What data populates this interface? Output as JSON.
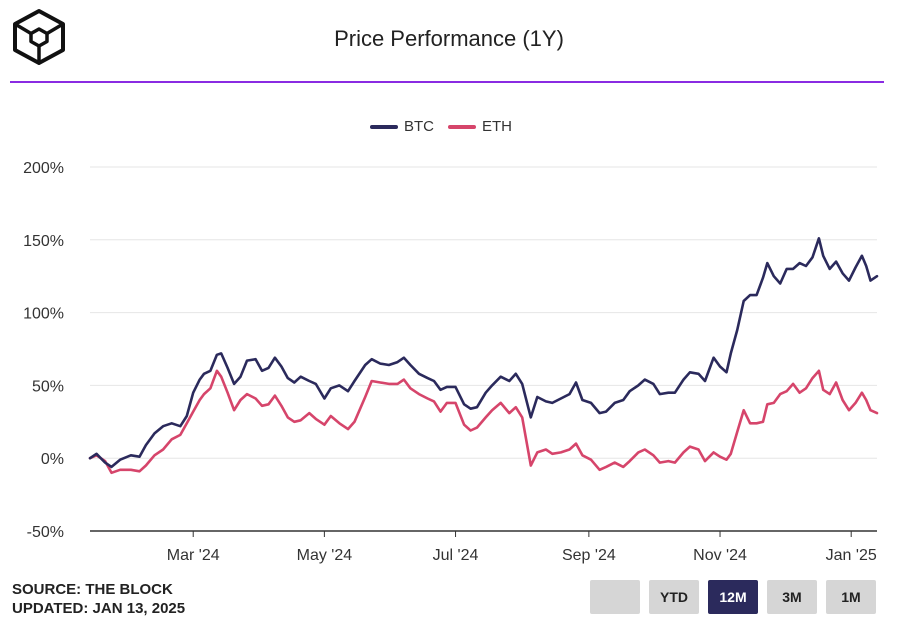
{
  "header": {
    "title": "Price Performance (1Y)"
  },
  "footer": {
    "source": "SOURCE: THE BLOCK",
    "updated": "UPDATED: JAN 13, 2025"
  },
  "range_buttons": [
    {
      "label": "",
      "active": false
    },
    {
      "label": "YTD",
      "active": false
    },
    {
      "label": "12M",
      "active": true
    },
    {
      "label": "3M",
      "active": false
    },
    {
      "label": "1M",
      "active": false
    }
  ],
  "colors": {
    "btc": "#2b2a5c",
    "eth": "#d6456b",
    "accent": "#8a2be2",
    "grid": "#e6e6e6"
  },
  "chart_data": {
    "type": "line",
    "title": "Price Performance (1Y)",
    "xlabel": "",
    "ylabel": "",
    "x_tick_labels": [
      "Mar '24",
      "May '24",
      "Jul '24",
      "Sep '24",
      "Nov '24",
      "Jan '25"
    ],
    "x_tick_dates": [
      "2024-03-01",
      "2024-05-01",
      "2024-07-01",
      "2024-09-01",
      "2024-11-01",
      "2025-01-01"
    ],
    "xlim": [
      "2024-01-13",
      "2025-01-13"
    ],
    "y_ticks": [
      -50,
      0,
      50,
      100,
      150,
      200
    ],
    "y_tick_labels": [
      "-50%",
      "0%",
      "50%",
      "100%",
      "150%",
      "200%"
    ],
    "ylim": [
      -50,
      200
    ],
    "grid": true,
    "legend_position": "top-center",
    "series": [
      {
        "name": "BTC",
        "color": "#2b2a5c",
        "points": [
          [
            "2024-01-13",
            0
          ],
          [
            "2024-01-16",
            3
          ],
          [
            "2024-01-20",
            -3
          ],
          [
            "2024-01-23",
            -6
          ],
          [
            "2024-01-27",
            -1
          ],
          [
            "2024-02-01",
            2
          ],
          [
            "2024-02-05",
            1
          ],
          [
            "2024-02-08",
            9
          ],
          [
            "2024-02-12",
            17
          ],
          [
            "2024-02-16",
            22
          ],
          [
            "2024-02-20",
            24
          ],
          [
            "2024-02-24",
            22
          ],
          [
            "2024-02-27",
            29
          ],
          [
            "2024-03-01",
            45
          ],
          [
            "2024-03-04",
            54
          ],
          [
            "2024-03-06",
            58
          ],
          [
            "2024-03-09",
            60
          ],
          [
            "2024-03-12",
            71
          ],
          [
            "2024-03-14",
            72
          ],
          [
            "2024-03-17",
            62
          ],
          [
            "2024-03-20",
            51
          ],
          [
            "2024-03-23",
            56
          ],
          [
            "2024-03-26",
            67
          ],
          [
            "2024-03-30",
            68
          ],
          [
            "2024-04-02",
            60
          ],
          [
            "2024-04-05",
            62
          ],
          [
            "2024-04-08",
            69
          ],
          [
            "2024-04-11",
            63
          ],
          [
            "2024-04-14",
            55
          ],
          [
            "2024-04-17",
            52
          ],
          [
            "2024-04-20",
            56
          ],
          [
            "2024-04-24",
            53
          ],
          [
            "2024-04-27",
            51
          ],
          [
            "2024-05-01",
            41
          ],
          [
            "2024-05-04",
            48
          ],
          [
            "2024-05-08",
            50
          ],
          [
            "2024-05-12",
            46
          ],
          [
            "2024-05-15",
            53
          ],
          [
            "2024-05-20",
            64
          ],
          [
            "2024-05-23",
            68
          ],
          [
            "2024-05-27",
            65
          ],
          [
            "2024-05-31",
            64
          ],
          [
            "2024-06-04",
            66
          ],
          [
            "2024-06-07",
            69
          ],
          [
            "2024-06-10",
            64
          ],
          [
            "2024-06-14",
            58
          ],
          [
            "2024-06-18",
            55
          ],
          [
            "2024-06-21",
            53
          ],
          [
            "2024-06-24",
            47
          ],
          [
            "2024-06-27",
            49
          ],
          [
            "2024-07-01",
            49
          ],
          [
            "2024-07-05",
            37
          ],
          [
            "2024-07-08",
            34
          ],
          [
            "2024-07-11",
            35
          ],
          [
            "2024-07-15",
            45
          ],
          [
            "2024-07-18",
            50
          ],
          [
            "2024-07-22",
            56
          ],
          [
            "2024-07-26",
            53
          ],
          [
            "2024-07-29",
            58
          ],
          [
            "2024-08-01",
            51
          ],
          [
            "2024-08-05",
            28
          ],
          [
            "2024-08-08",
            42
          ],
          [
            "2024-08-12",
            39
          ],
          [
            "2024-08-15",
            38
          ],
          [
            "2024-08-19",
            41
          ],
          [
            "2024-08-23",
            44
          ],
          [
            "2024-08-26",
            52
          ],
          [
            "2024-08-29",
            40
          ],
          [
            "2024-09-02",
            38
          ],
          [
            "2024-09-06",
            31
          ],
          [
            "2024-09-09",
            32
          ],
          [
            "2024-09-13",
            38
          ],
          [
            "2024-09-17",
            40
          ],
          [
            "2024-09-20",
            46
          ],
          [
            "2024-09-24",
            50
          ],
          [
            "2024-09-27",
            54
          ],
          [
            "2024-10-01",
            51
          ],
          [
            "2024-10-04",
            44
          ],
          [
            "2024-10-08",
            45
          ],
          [
            "2024-10-11",
            45
          ],
          [
            "2024-10-15",
            54
          ],
          [
            "2024-10-18",
            59
          ],
          [
            "2024-10-22",
            58
          ],
          [
            "2024-10-25",
            53
          ],
          [
            "2024-10-29",
            69
          ],
          [
            "2024-11-01",
            63
          ],
          [
            "2024-11-04",
            59
          ],
          [
            "2024-11-06",
            72
          ],
          [
            "2024-11-09",
            88
          ],
          [
            "2024-11-12",
            108
          ],
          [
            "2024-11-15",
            112
          ],
          [
            "2024-11-18",
            112
          ],
          [
            "2024-11-21",
            124
          ],
          [
            "2024-11-23",
            134
          ],
          [
            "2024-11-26",
            125
          ],
          [
            "2024-11-29",
            120
          ],
          [
            "2024-12-02",
            130
          ],
          [
            "2024-12-05",
            130
          ],
          [
            "2024-12-08",
            134
          ],
          [
            "2024-12-11",
            132
          ],
          [
            "2024-12-14",
            138
          ],
          [
            "2024-12-17",
            151
          ],
          [
            "2024-12-19",
            139
          ],
          [
            "2024-12-22",
            130
          ],
          [
            "2024-12-25",
            135
          ],
          [
            "2024-12-28",
            127
          ],
          [
            "2024-12-31",
            122
          ],
          [
            "2025-01-03",
            131
          ],
          [
            "2025-01-06",
            139
          ],
          [
            "2025-01-08",
            132
          ],
          [
            "2025-01-10",
            122
          ],
          [
            "2025-01-13",
            125
          ]
        ]
      },
      {
        "name": "ETH",
        "color": "#d6456b",
        "points": [
          [
            "2024-01-13",
            0
          ],
          [
            "2024-01-16",
            2
          ],
          [
            "2024-01-20",
            -2
          ],
          [
            "2024-01-23",
            -10
          ],
          [
            "2024-01-27",
            -8
          ],
          [
            "2024-02-01",
            -8
          ],
          [
            "2024-02-05",
            -9
          ],
          [
            "2024-02-08",
            -5
          ],
          [
            "2024-02-12",
            2
          ],
          [
            "2024-02-16",
            6
          ],
          [
            "2024-02-20",
            13
          ],
          [
            "2024-02-24",
            16
          ],
          [
            "2024-02-27",
            24
          ],
          [
            "2024-03-01",
            32
          ],
          [
            "2024-03-04",
            40
          ],
          [
            "2024-03-06",
            44
          ],
          [
            "2024-03-09",
            48
          ],
          [
            "2024-03-12",
            60
          ],
          [
            "2024-03-14",
            56
          ],
          [
            "2024-03-17",
            45
          ],
          [
            "2024-03-20",
            33
          ],
          [
            "2024-03-23",
            40
          ],
          [
            "2024-03-26",
            44
          ],
          [
            "2024-03-30",
            41
          ],
          [
            "2024-04-02",
            36
          ],
          [
            "2024-04-05",
            37
          ],
          [
            "2024-04-08",
            43
          ],
          [
            "2024-04-11",
            36
          ],
          [
            "2024-04-14",
            28
          ],
          [
            "2024-04-17",
            25
          ],
          [
            "2024-04-20",
            26
          ],
          [
            "2024-04-24",
            31
          ],
          [
            "2024-04-27",
            27
          ],
          [
            "2024-05-01",
            23
          ],
          [
            "2024-05-04",
            29
          ],
          [
            "2024-05-08",
            24
          ],
          [
            "2024-05-12",
            20
          ],
          [
            "2024-05-15",
            25
          ],
          [
            "2024-05-20",
            42
          ],
          [
            "2024-05-23",
            53
          ],
          [
            "2024-05-27",
            52
          ],
          [
            "2024-05-31",
            51
          ],
          [
            "2024-06-04",
            51
          ],
          [
            "2024-06-07",
            54
          ],
          [
            "2024-06-10",
            48
          ],
          [
            "2024-06-14",
            44
          ],
          [
            "2024-06-18",
            41
          ],
          [
            "2024-06-21",
            39
          ],
          [
            "2024-06-24",
            32
          ],
          [
            "2024-06-27",
            38
          ],
          [
            "2024-07-01",
            38
          ],
          [
            "2024-07-05",
            23
          ],
          [
            "2024-07-08",
            19
          ],
          [
            "2024-07-11",
            21
          ],
          [
            "2024-07-15",
            28
          ],
          [
            "2024-07-18",
            33
          ],
          [
            "2024-07-22",
            38
          ],
          [
            "2024-07-26",
            31
          ],
          [
            "2024-07-29",
            35
          ],
          [
            "2024-08-01",
            28
          ],
          [
            "2024-08-05",
            -5
          ],
          [
            "2024-08-08",
            4
          ],
          [
            "2024-08-12",
            6
          ],
          [
            "2024-08-15",
            3
          ],
          [
            "2024-08-19",
            4
          ],
          [
            "2024-08-23",
            6
          ],
          [
            "2024-08-26",
            10
          ],
          [
            "2024-08-29",
            2
          ],
          [
            "2024-09-02",
            -1
          ],
          [
            "2024-09-06",
            -8
          ],
          [
            "2024-09-09",
            -6
          ],
          [
            "2024-09-13",
            -3
          ],
          [
            "2024-09-17",
            -6
          ],
          [
            "2024-09-20",
            -2
          ],
          [
            "2024-09-24",
            4
          ],
          [
            "2024-09-27",
            6
          ],
          [
            "2024-10-01",
            2
          ],
          [
            "2024-10-04",
            -3
          ],
          [
            "2024-10-08",
            -2
          ],
          [
            "2024-10-11",
            -3
          ],
          [
            "2024-10-15",
            4
          ],
          [
            "2024-10-18",
            8
          ],
          [
            "2024-10-22",
            6
          ],
          [
            "2024-10-25",
            -2
          ],
          [
            "2024-10-29",
            4
          ],
          [
            "2024-11-01",
            1
          ],
          [
            "2024-11-04",
            -1
          ],
          [
            "2024-11-06",
            3
          ],
          [
            "2024-11-09",
            18
          ],
          [
            "2024-11-12",
            33
          ],
          [
            "2024-11-15",
            24
          ],
          [
            "2024-11-18",
            24
          ],
          [
            "2024-11-21",
            25
          ],
          [
            "2024-11-23",
            37
          ],
          [
            "2024-11-26",
            38
          ],
          [
            "2024-11-29",
            44
          ],
          [
            "2024-12-02",
            46
          ],
          [
            "2024-12-05",
            51
          ],
          [
            "2024-12-08",
            45
          ],
          [
            "2024-12-11",
            48
          ],
          [
            "2024-12-14",
            55
          ],
          [
            "2024-12-17",
            60
          ],
          [
            "2024-12-19",
            47
          ],
          [
            "2024-12-22",
            44
          ],
          [
            "2024-12-25",
            52
          ],
          [
            "2024-12-28",
            40
          ],
          [
            "2024-12-31",
            33
          ],
          [
            "2025-01-03",
            38
          ],
          [
            "2025-01-06",
            45
          ],
          [
            "2025-01-08",
            40
          ],
          [
            "2025-01-10",
            33
          ],
          [
            "2025-01-13",
            31
          ]
        ]
      }
    ]
  }
}
